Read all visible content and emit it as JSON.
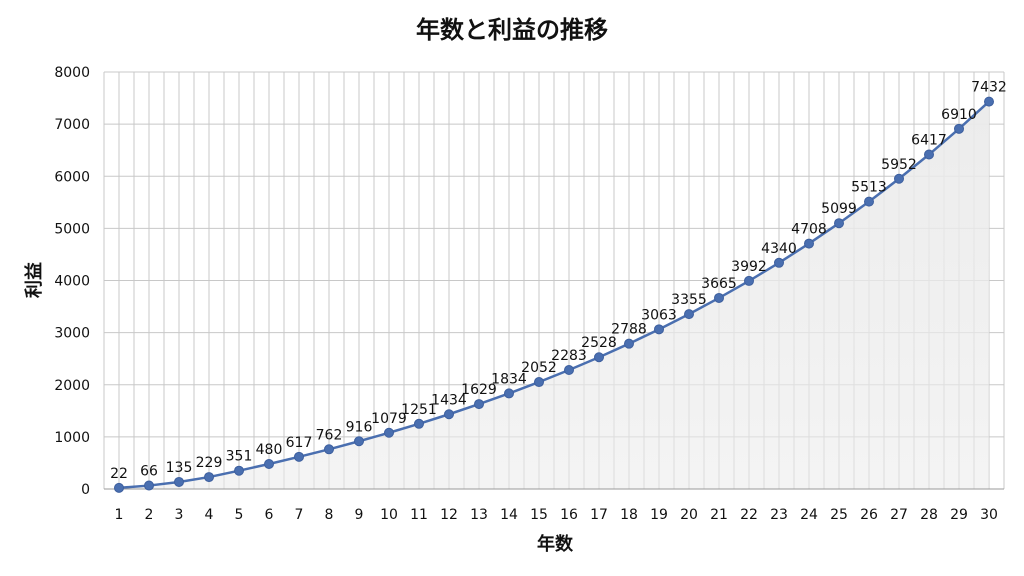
{
  "chart_data": {
    "type": "line",
    "title": "年数と利益の推移",
    "xlabel": "年数",
    "ylabel": "利益",
    "x": [
      1,
      2,
      3,
      4,
      5,
      6,
      7,
      8,
      9,
      10,
      11,
      12,
      13,
      14,
      15,
      16,
      17,
      18,
      19,
      20,
      21,
      22,
      23,
      24,
      25,
      26,
      27,
      28,
      29,
      30
    ],
    "categories": [
      "1",
      "2",
      "3",
      "4",
      "5",
      "6",
      "7",
      "8",
      "9",
      "10",
      "11",
      "12",
      "13",
      "14",
      "15",
      "16",
      "17",
      "18",
      "19",
      "20",
      "21",
      "22",
      "23",
      "24",
      "25",
      "26",
      "27",
      "28",
      "29",
      "30"
    ],
    "series": [
      {
        "values": [
          22,
          66,
          135,
          229,
          351,
          480,
          617,
          762,
          916,
          1079,
          1251,
          1434,
          1629,
          1834,
          2052,
          2283,
          2528,
          2788,
          3063,
          3355,
          3665,
          3992,
          4340,
          4708,
          5099,
          5513,
          5952,
          6417,
          6910,
          7432
        ]
      }
    ],
    "ylim": [
      0,
      8000
    ],
    "yticks": [
      0,
      1000,
      2000,
      3000,
      4000,
      5000,
      6000,
      7000,
      8000
    ],
    "ytick_labels": [
      "0",
      "1000",
      "2000",
      "3000",
      "4000",
      "5000",
      "6000",
      "7000",
      "8000"
    ],
    "grid": true,
    "data_labels": true,
    "colors": {
      "line": "#4a6fb0",
      "marker": "#4a6fb0",
      "area": "#ebebeb",
      "grid": "#c8c8c8"
    }
  }
}
